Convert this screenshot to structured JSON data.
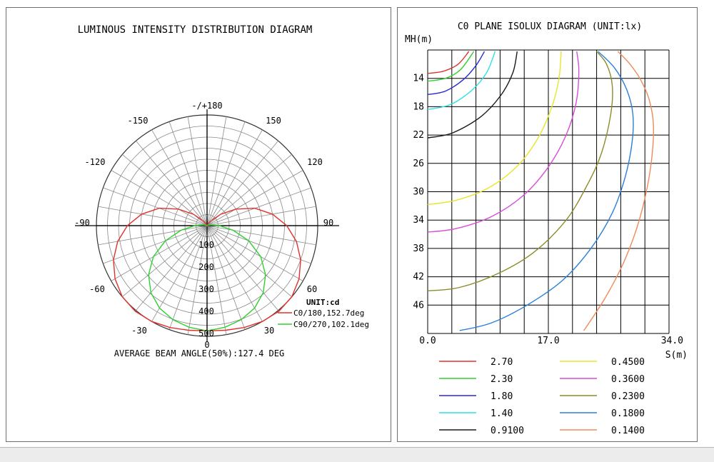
{
  "polar": {
    "title": "LUMINOUS INTENSITY DISTRIBUTION DIAGRAM",
    "angle_labels": [
      "-/+180",
      "-150",
      "150",
      "-120",
      "120",
      "-90",
      "90",
      "-60",
      "60",
      "-30",
      "30",
      "0"
    ],
    "radial_labels": [
      "100",
      "200",
      "300",
      "400",
      "500"
    ],
    "unit": "UNIT:cd",
    "footer": "AVERAGE BEAM ANGLE(50%):127.4 DEG"
  },
  "isolux": {
    "title": "C0 PLANE ISOLUX DIAGRAM (UNIT:lx)",
    "y_label": "MH(m)",
    "x_label": "S(m)"
  },
  "chart_data": [
    {
      "type": "polar",
      "title": "LUMINOUS INTENSITY DISTRIBUTION DIAGRAM",
      "unit": "UNIT:cd",
      "r_max": 500,
      "r_ticks": [
        100,
        200,
        300,
        400,
        500
      ],
      "angle_ticks": [
        0,
        30,
        60,
        90,
        120,
        150,
        180,
        -150,
        -120,
        -90,
        -60,
        -30
      ],
      "series": [
        {
          "name": "C0/180,152.7deg",
          "color": "#e0322c",
          "angles": [
            0,
            10,
            20,
            30,
            40,
            50,
            60,
            70,
            80,
            90,
            100,
            110,
            120,
            130,
            140,
            150,
            160,
            170,
            180
          ],
          "values": [
            475,
            480,
            490,
            500,
            505,
            500,
            480,
            450,
            410,
            360,
            300,
            230,
            150,
            80,
            30,
            10,
            3,
            1,
            0
          ]
        },
        {
          "name": "C90/270,102.1deg",
          "color": "#2ed12e",
          "angles": [
            0,
            10,
            20,
            30,
            40,
            50,
            60,
            70,
            80,
            90,
            100,
            110,
            120,
            130,
            140,
            150,
            160,
            170,
            180
          ],
          "values": [
            475,
            466,
            452,
            430,
            395,
            345,
            280,
            200,
            120,
            55,
            20,
            5,
            0,
            0,
            0,
            0,
            0,
            0,
            0
          ]
        }
      ],
      "footer": "AVERAGE BEAM ANGLE(50%):127.4 DEG"
    },
    {
      "type": "line",
      "title": "C0 PLANE ISOLUX DIAGRAM (UNIT:lx)",
      "xlabel": "S(m)",
      "ylabel": "MH(m)",
      "xlim": [
        0,
        34
      ],
      "x_ticks": [
        0.0,
        17.0,
        34.0
      ],
      "ylim": [
        10,
        50
      ],
      "y_ticks": [
        14,
        18,
        22,
        26,
        30,
        34,
        38,
        42,
        46
      ],
      "y_inverted": true,
      "series": [
        {
          "name": "2.70",
          "color": "#e0322c",
          "x": [
            0.0,
            2.2,
            4.3,
            5.8
          ],
          "y": [
            13.3,
            13.0,
            12.0,
            10.2
          ]
        },
        {
          "name": "2.30",
          "color": "#2ed12e",
          "x": [
            0.0,
            2.5,
            4.6,
            6.5
          ],
          "y": [
            14.4,
            14.0,
            12.8,
            10.2
          ]
        },
        {
          "name": "1.80",
          "color": "#2a2ad4",
          "x": [
            0.0,
            2.5,
            5.0,
            6.8,
            8.0
          ],
          "y": [
            16.3,
            15.8,
            14.2,
            12.2,
            10.2
          ]
        },
        {
          "name": "1.40",
          "color": "#2fe0e0",
          "x": [
            0.0,
            3.2,
            6.2,
            8.3,
            9.5
          ],
          "y": [
            18.4,
            17.7,
            15.7,
            13.2,
            10.2
          ]
        },
        {
          "name": "0.9100",
          "color": "#1a1a1a",
          "x": [
            0.0,
            3.5,
            7.5,
            10.3,
            12.0,
            12.6
          ],
          "y": [
            22.4,
            21.7,
            19.4,
            16.4,
            13.2,
            10.2
          ]
        },
        {
          "name": "0.4500",
          "color": "#e6e62a",
          "x": [
            0.0,
            4.0,
            8.5,
            12.5,
            15.5,
            17.5,
            18.5,
            18.8
          ],
          "y": [
            31.8,
            31.2,
            29.5,
            26.5,
            22.5,
            18.0,
            14.0,
            10.2
          ]
        },
        {
          "name": "0.3600",
          "color": "#d94bd9",
          "x": [
            0.0,
            4.0,
            9.0,
            13.5,
            17.0,
            19.5,
            20.9,
            21.3,
            21.0
          ],
          "y": [
            35.7,
            35.2,
            33.5,
            30.5,
            26.5,
            22.0,
            17.5,
            13.0,
            10.2
          ]
        },
        {
          "name": "0.2300",
          "color": "#8c8c2a",
          "x": [
            0.0,
            4.5,
            10.0,
            15.0,
            19.5,
            22.5,
            24.5,
            25.8,
            26.0,
            25.2,
            23.8
          ],
          "y": [
            44.0,
            43.5,
            41.5,
            38.5,
            34.0,
            29.0,
            24.5,
            19.0,
            15.0,
            12.0,
            10.2
          ]
        },
        {
          "name": "0.1800",
          "color": "#2a7fd9",
          "x": [
            4.5,
            9.0,
            14.0,
            19.0,
            23.0,
            26.0,
            27.8,
            28.8,
            28.9,
            28.0,
            26.3,
            24.0
          ],
          "y": [
            49.6,
            48.5,
            46.0,
            42.5,
            38.0,
            33.0,
            28.0,
            23.0,
            19.0,
            15.5,
            12.5,
            10.2
          ]
        },
        {
          "name": "0.1400",
          "color": "#f08a5a",
          "x": [
            22.0,
            25.0,
            27.6,
            29.5,
            30.8,
            31.6,
            31.8,
            31.2,
            30.0,
            28.5,
            26.8
          ],
          "y": [
            49.6,
            45.0,
            40.0,
            35.0,
            30.0,
            25.0,
            20.5,
            17.0,
            14.2,
            12.0,
            10.2
          ]
        }
      ]
    }
  ]
}
